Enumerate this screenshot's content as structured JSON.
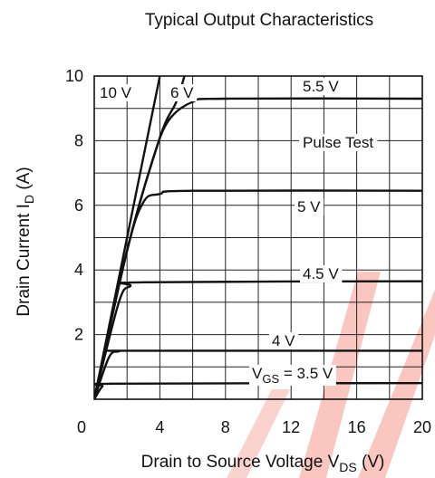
{
  "chart_data": {
    "type": "line",
    "title": "Typical Output Characteristics",
    "xlabel": {
      "main": "Drain to Source Voltage  V",
      "sub": "DS",
      "unit": "  (V)"
    },
    "ylabel": {
      "main": "Drain Current  I",
      "sub": "D",
      "unit": "  (A)"
    },
    "xlim": [
      0,
      20
    ],
    "ylim": [
      0,
      10
    ],
    "x_ticks": [
      "0",
      "4",
      "8",
      "12",
      "16",
      "20"
    ],
    "y_ticks": [
      "2",
      "4",
      "6",
      "8",
      "10"
    ],
    "grid": true,
    "annotation": "Pulse Test",
    "series": [
      {
        "name": "10 V",
        "points": [
          [
            0,
            0
          ],
          [
            4,
            10
          ]
        ]
      },
      {
        "name": "6 V",
        "points": [
          [
            0,
            0
          ],
          [
            2,
            4.6
          ],
          [
            4,
            8.1
          ],
          [
            5,
            9.2
          ],
          [
            5.5,
            10
          ]
        ]
      },
      {
        "name": "5.5 V",
        "points": [
          [
            0,
            0
          ],
          [
            2,
            4.6
          ],
          [
            3.5,
            7.3
          ],
          [
            4.5,
            8.6
          ],
          [
            6,
            9.2
          ],
          [
            8,
            9.3
          ],
          [
            20,
            9.3
          ]
        ]
      },
      {
        "name": "5 V",
        "points": [
          [
            0,
            0
          ],
          [
            2,
            4.6
          ],
          [
            3,
            6.1
          ],
          [
            4,
            6.35
          ],
          [
            6,
            6.45
          ],
          [
            20,
            6.45
          ]
        ]
      },
      {
        "name": "4.5 V",
        "points": [
          [
            0,
            0
          ],
          [
            1.5,
            3.0
          ],
          [
            2.2,
            3.5
          ],
          [
            3,
            3.62
          ],
          [
            20,
            3.65
          ]
        ]
      },
      {
        "name": "4 V",
        "points": [
          [
            0,
            0
          ],
          [
            0.9,
            1.3
          ],
          [
            1.5,
            1.48
          ],
          [
            2.2,
            1.5
          ],
          [
            20,
            1.5
          ]
        ]
      },
      {
        "name": "V_GS = 3.5 V",
        "label_main": "V",
        "label_sub": "GS",
        "label_rest": " = 3.5 V",
        "points": [
          [
            0,
            0
          ],
          [
            0.5,
            0.4
          ],
          [
            1,
            0.48
          ],
          [
            20,
            0.5
          ]
        ]
      }
    ]
  },
  "watermark": {
    "color": "#e8321e"
  }
}
